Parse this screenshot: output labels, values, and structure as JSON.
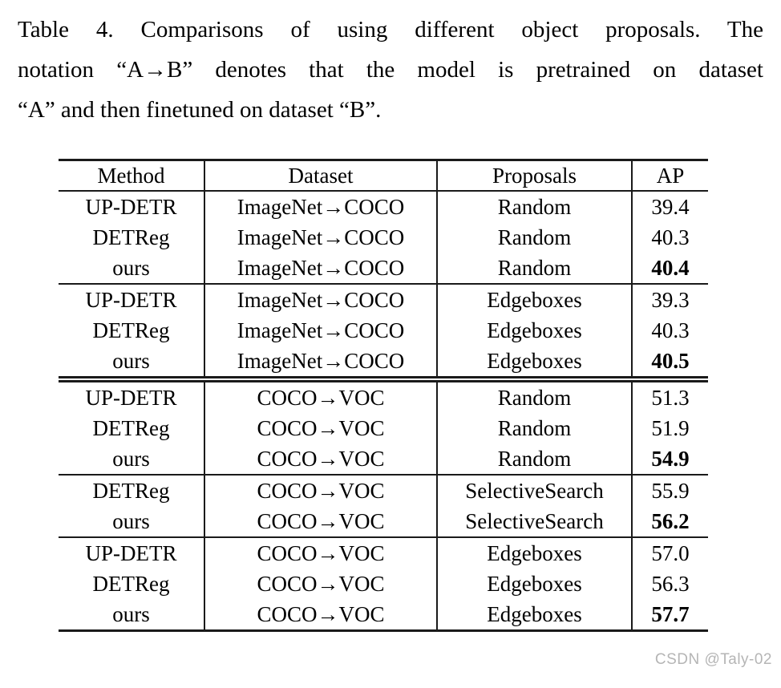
{
  "caption": {
    "lines": [
      "Table 4.  Comparisons of using different object proposals.  The",
      "notation “A→B” denotes that the model is pretrained on dataset",
      "“A” and then finetuned on dataset “B”."
    ]
  },
  "table": {
    "columns": [
      "Method",
      "Dataset",
      "Proposals",
      "AP"
    ],
    "groups": [
      {
        "separator_after": "single",
        "rows": [
          {
            "method": "UP-DETR",
            "dataset": "ImageNet→COCO",
            "proposals": "Random",
            "ap": "39.4",
            "ap_bold": false
          },
          {
            "method": "DETReg",
            "dataset": "ImageNet→COCO",
            "proposals": "Random",
            "ap": "40.3",
            "ap_bold": false
          },
          {
            "method": "ours",
            "dataset": "ImageNet→COCO",
            "proposals": "Random",
            "ap": "40.4",
            "ap_bold": true
          }
        ]
      },
      {
        "separator_after": "double",
        "rows": [
          {
            "method": "UP-DETR",
            "dataset": "ImageNet→COCO",
            "proposals": "Edgeboxes",
            "ap": "39.3",
            "ap_bold": false
          },
          {
            "method": "DETReg",
            "dataset": "ImageNet→COCO",
            "proposals": "Edgeboxes",
            "ap": "40.3",
            "ap_bold": false
          },
          {
            "method": "ours",
            "dataset": "ImageNet→COCO",
            "proposals": "Edgeboxes",
            "ap": "40.5",
            "ap_bold": true
          }
        ]
      },
      {
        "separator_after": "single",
        "rows": [
          {
            "method": "UP-DETR",
            "dataset": "COCO→VOC",
            "proposals": "Random",
            "ap": "51.3",
            "ap_bold": false
          },
          {
            "method": "DETReg",
            "dataset": "COCO→VOC",
            "proposals": "Random",
            "ap": "51.9",
            "ap_bold": false
          },
          {
            "method": "ours",
            "dataset": "COCO→VOC",
            "proposals": "Random",
            "ap": "54.9",
            "ap_bold": true
          }
        ]
      },
      {
        "separator_after": "single",
        "rows": [
          {
            "method": "DETReg",
            "dataset": "COCO→VOC",
            "proposals": "SelectiveSearch",
            "ap": "55.9",
            "ap_bold": false
          },
          {
            "method": "ours",
            "dataset": "COCO→VOC",
            "proposals": "SelectiveSearch",
            "ap": "56.2",
            "ap_bold": true
          }
        ]
      },
      {
        "separator_after": "bottom",
        "rows": [
          {
            "method": "UP-DETR",
            "dataset": "COCO→VOC",
            "proposals": "Edgeboxes",
            "ap": "57.0",
            "ap_bold": false
          },
          {
            "method": "DETReg",
            "dataset": "COCO→VOC",
            "proposals": "Edgeboxes",
            "ap": "56.3",
            "ap_bold": false
          },
          {
            "method": "ours",
            "dataset": "COCO→VOC",
            "proposals": "Edgeboxes",
            "ap": "57.7",
            "ap_bold": true
          }
        ]
      }
    ]
  },
  "watermark": {
    "text": "CSDN @Taly-02"
  },
  "colors": {
    "background": "#ffffff",
    "text": "#000000",
    "rule": "#1a1a1a",
    "watermark": "#b5b5b5"
  }
}
